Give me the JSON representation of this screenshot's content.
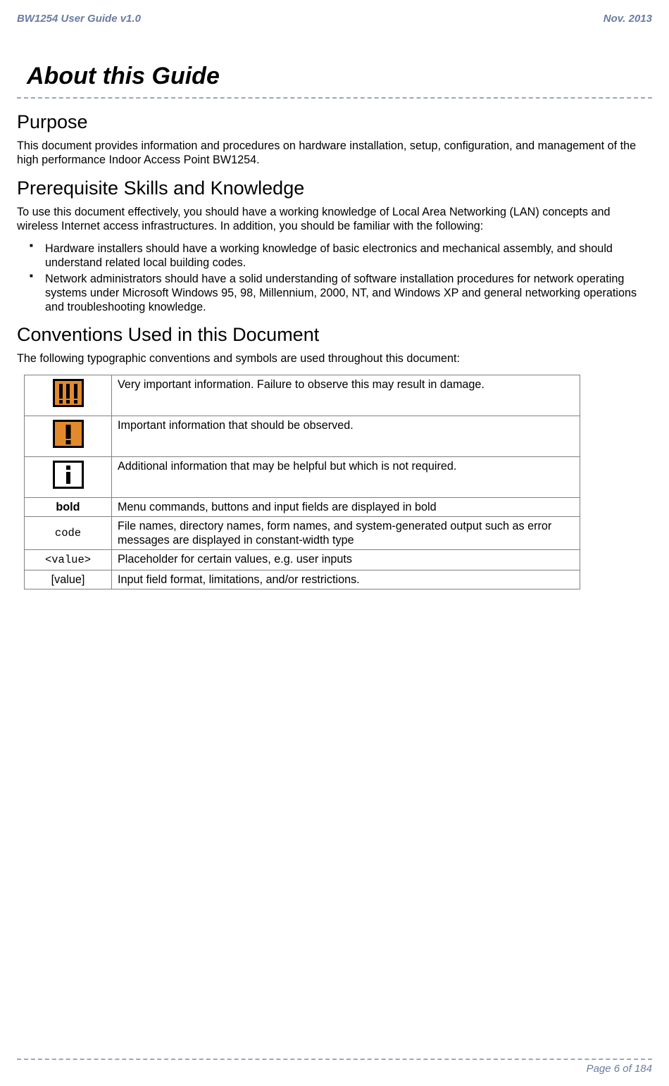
{
  "header": {
    "doc_title": "BW1254 User Guide v1.0",
    "date": "Nov.  2013"
  },
  "chapter_title": "About this Guide",
  "sections": {
    "purpose": {
      "heading": "Purpose",
      "body": "This document provides information and procedures on hardware installation, setup, configuration, and management of the high performance Indoor Access Point BW1254."
    },
    "prereq": {
      "heading": "Prerequisite Skills and Knowledge",
      "intro": "To use this document effectively, you should have a working knowledge of Local Area Networking (LAN) concepts and wireless Internet access infrastructures. In addition, you should be familiar with the following:",
      "bullets": [
        "Hardware installers should have a working knowledge of basic electronics and mechanical assembly, and should understand related local building codes.",
        "Network administrators should have a solid understanding of software installation procedures for network operating systems under Microsoft Windows 95, 98, Millennium, 2000, NT, and Windows XP and general networking operations and troubleshooting knowledge."
      ]
    },
    "conventions": {
      "heading": "Conventions Used in this Document",
      "intro": "The following typographic conventions and symbols are used throughout this document:",
      "rows": [
        {
          "symbol_type": "icon-triple",
          "desc": "Very important information. Failure to observe this may result in damage."
        },
        {
          "symbol_type": "icon-single",
          "desc": "Important information that should be observed."
        },
        {
          "symbol_type": "icon-info",
          "desc": "Additional information that may be helpful but which is not required."
        },
        {
          "symbol_text": "bold",
          "symbol_style": "bold",
          "desc": "Menu commands, buttons and input fields are displayed in bold"
        },
        {
          "symbol_text": "code",
          "symbol_style": "code",
          "desc": "File names, directory names, form names, and system-generated output such as error messages are displayed in constant-width type"
        },
        {
          "symbol_text": "<value>",
          "symbol_style": "code",
          "desc": "Placeholder for certain values, e.g. user inputs"
        },
        {
          "symbol_text": "[value]",
          "symbol_style": "plain",
          "desc": "Input field format, limitations, and/or restrictions."
        }
      ]
    }
  },
  "footer": {
    "page": "Page 6 of 184"
  },
  "colors": {
    "header_text": "#6a7ca3",
    "dash_line": "#9aa7c0",
    "icon_orange": "#e28a2b",
    "table_border": "#808080"
  }
}
